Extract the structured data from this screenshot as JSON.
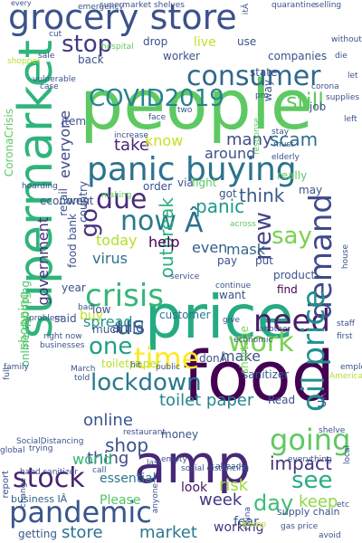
{
  "words": [
    {
      "text": "grocery store",
      "color": "#3b528b"
    },
    {
      "text": "people",
      "color": "#5ec962"
    },
    {
      "text": "food",
      "color": "#440154"
    },
    {
      "text": "supermarket",
      "color": "#2fb47c"
    },
    {
      "text": "price",
      "color": "#25ab82"
    },
    {
      "text": "amp",
      "color": "#482878"
    },
    {
      "text": "consumer",
      "color": "#31688e"
    },
    {
      "text": "COVID2019",
      "color": "#26828e"
    },
    {
      "text": "panic buying",
      "color": "#2c728e"
    },
    {
      "text": "crisis",
      "color": "#35b779"
    },
    {
      "text": "time",
      "color": "#fde725"
    },
    {
      "text": "stock",
      "color": "#482475"
    },
    {
      "text": "pandemic",
      "color": "#39568c"
    },
    {
      "text": "need",
      "color": "#481a6c"
    },
    {
      "text": "demand",
      "color": "#3e4a89"
    },
    {
      "text": "oil price",
      "color": "#21918c"
    },
    {
      "text": "going",
      "color": "#5ec962"
    },
    {
      "text": "work",
      "color": "#7ad151"
    },
    {
      "text": "lockdown",
      "color": "#2a788e"
    },
    {
      "text": "now",
      "color": "#2a788e"
    },
    {
      "text": "due",
      "color": "#472d7b"
    },
    {
      "text": "stop",
      "color": "#443983"
    },
    {
      "text": "still",
      "color": "#5ec962"
    },
    {
      "text": "new",
      "color": "#414487"
    },
    {
      "text": "say",
      "color": "#7ad151"
    },
    {
      "text": "us",
      "color": "#33638d"
    },
    {
      "text": "one",
      "color": "#1fa187"
    },
    {
      "text": "go",
      "color": "#46337e"
    },
    {
      "text": "Â",
      "color": "#2d708e"
    },
    {
      "text": "shop",
      "color": "#3b528b"
    },
    {
      "text": "see",
      "color": "#27ad81"
    },
    {
      "text": "day",
      "color": "#3dbc74"
    },
    {
      "text": "impact",
      "color": "#46327e"
    },
    {
      "text": "keep",
      "color": "#8fd744"
    },
    {
      "text": "scam",
      "color": "#2e6e8e"
    },
    {
      "text": "outbreak",
      "color": "#29af7f"
    },
    {
      "text": "take",
      "color": "#482475"
    },
    {
      "text": "think",
      "color": "#38598c"
    },
    {
      "text": "panic",
      "color": "#1f978b"
    },
    {
      "text": "today",
      "color": "#b5de2b"
    },
    {
      "text": "help",
      "color": "#440154"
    },
    {
      "text": "even",
      "color": "#365c8d"
    },
    {
      "text": "virus",
      "color": "#2d708e"
    },
    {
      "text": "mask",
      "color": "#30698e"
    },
    {
      "text": "toilet paper",
      "color": "#25858e"
    },
    {
      "text": "online",
      "color": "#39558c"
    },
    {
      "text": "thing",
      "color": "#3e4989"
    },
    {
      "text": "world",
      "color": "#35b779"
    },
    {
      "text": "week",
      "color": "#453581"
    },
    {
      "text": "risk",
      "color": "#9fda3a"
    },
    {
      "text": "store",
      "color": "#2c728e"
    },
    {
      "text": "market",
      "color": "#2a788e"
    },
    {
      "text": "Please",
      "color": "#52c569"
    },
    {
      "text": "working",
      "color": "#46327e"
    },
    {
      "text": "everyone",
      "color": "#3f4788"
    },
    {
      "text": "know",
      "color": "#c8e020"
    },
    {
      "text": "many",
      "color": "#3e4c8a"
    },
    {
      "text": "around",
      "color": "#3a538b"
    },
    {
      "text": "government",
      "color": "#472c7a"
    },
    {
      "text": "shopping",
      "color": "#5ec962"
    },
    {
      "text": "online shopping",
      "color": "#4ac16d"
    },
    {
      "text": "make",
      "color": "#3b528b"
    },
    {
      "text": "fear",
      "color": "#365c8d"
    },
    {
      "text": "look",
      "color": "#481467"
    },
    {
      "text": "essential",
      "color": "#2a788e"
    },
    {
      "text": "getting",
      "color": "#37598c"
    },
    {
      "text": "business IÂ",
      "color": "#34618d"
    },
    {
      "text": "report",
      "color": "#3b518b"
    },
    {
      "text": "food bank",
      "color": "#3b528b"
    },
    {
      "text": "spread",
      "color": "#20928c"
    },
    {
      "text": "buy",
      "color": "#c5e021"
    },
    {
      "text": "amid",
      "color": "#3b528b"
    },
    {
      "text": "customer",
      "color": "#2a788e"
    },
    {
      "text": "donÂ",
      "color": "#3b528b"
    },
    {
      "text": "Read",
      "color": "#3b528b"
    },
    {
      "text": "money",
      "color": "#3b528b"
    },
    {
      "text": "toiletpaper",
      "color": "#b5de2b"
    },
    {
      "text": "sanitizer",
      "color": "#38598c"
    },
    {
      "text": "shortage",
      "color": "#7ad151"
    },
    {
      "text": "want",
      "color": "#3b528b"
    },
    {
      "text": "find",
      "color": "#440154"
    },
    {
      "text": "product",
      "color": "#3b528b"
    },
    {
      "text": "pay",
      "color": "#3b528b"
    },
    {
      "text": "put",
      "color": "#3b528b"
    },
    {
      "text": "really",
      "color": "#5ec962"
    },
    {
      "text": "way",
      "color": "#3b528b"
    },
    {
      "text": "job",
      "color": "#3b528b"
    },
    {
      "text": "got",
      "color": "#3b528b"
    },
    {
      "text": "may",
      "color": "#3b528b"
    },
    {
      "text": "state",
      "color": "#3b528b"
    },
    {
      "text": "companies",
      "color": "#3b528b"
    },
    {
      "text": "live",
      "color": "#c2df23"
    },
    {
      "text": "use",
      "color": "#3b528b"
    },
    {
      "text": "worker",
      "color": "#3b528b"
    },
    {
      "text": "back",
      "color": "#3b528b"
    },
    {
      "text": "drop",
      "color": "#3b528b"
    },
    {
      "text": "item",
      "color": "#3b528b"
    },
    {
      "text": "went",
      "color": "#3b528b"
    },
    {
      "text": "economy",
      "color": "#3b528b"
    },
    {
      "text": "retail",
      "color": "#3b528b"
    },
    {
      "text": "country",
      "color": "#3b528b"
    },
    {
      "text": "year",
      "color": "#3b528b"
    },
    {
      "text": "order",
      "color": "#3b528b"
    },
    {
      "text": "via",
      "color": "#3b528b"
    },
    {
      "text": "fight",
      "color": "#5ec962"
    },
    {
      "text": "low",
      "color": "#3b528b"
    },
    {
      "text": "much",
      "color": "#3b528b"
    },
    {
      "text": "said",
      "color": "#3b528b"
    },
    {
      "text": "UK",
      "color": "#3b528b"
    },
    {
      "text": "supply chain",
      "color": "#3b528b"
    },
    {
      "text": "social distancing",
      "color": "#3b528b"
    },
    {
      "text": "hand sanitizer",
      "color": "#3b528b"
    },
    {
      "text": "gas price",
      "color": "#3b528b"
    },
    {
      "text": "CoronaCrisis",
      "color": "#5ec962"
    },
    {
      "text": "every",
      "color": "#3b528b"
    },
    {
      "text": "supermarket shelves",
      "color": "#3b528b"
    },
    {
      "text": "quarantine",
      "color": "#3b528b"
    },
    {
      "text": "selling",
      "color": "#3b528b"
    },
    {
      "text": "itÂ",
      "color": "#3b528b"
    },
    {
      "text": "emergency",
      "color": "#3b528b"
    },
    {
      "text": "without",
      "color": "#3b528b"
    },
    {
      "text": "hospital",
      "color": "#5ec962"
    },
    {
      "text": "vulnerable",
      "color": "#3b528b"
    },
    {
      "text": "case",
      "color": "#3b528b"
    },
    {
      "text": "die",
      "color": "#3b528b"
    },
    {
      "text": "corona",
      "color": "#3b528b"
    },
    {
      "text": "supplies",
      "color": "#3b528b"
    },
    {
      "text": "left",
      "color": "#3b528b"
    },
    {
      "text": "increase",
      "color": "#3b528b"
    },
    {
      "text": "stay",
      "color": "#3b528b"
    },
    {
      "text": "must",
      "color": "#3b528b"
    },
    {
      "text": "elderly",
      "color": "#3b528b"
    },
    {
      "text": "hoarding",
      "color": "#3b528b"
    },
    {
      "text": "making",
      "color": "#5ec962"
    },
    {
      "text": "across",
      "color": "#5ec962"
    },
    {
      "text": "service",
      "color": "#3b528b"
    },
    {
      "text": "continue",
      "color": "#3b528b"
    },
    {
      "text": "house",
      "color": "#3b528b"
    },
    {
      "text": "give",
      "color": "#3b528b"
    },
    {
      "text": "staff",
      "color": "#3b528b"
    },
    {
      "text": "first",
      "color": "#3b528b"
    },
    {
      "text": "another",
      "color": "#3b528b"
    },
    {
      "text": "hit",
      "color": "#3b528b"
    },
    {
      "text": "public",
      "color": "#3b528b"
    },
    {
      "text": "employee",
      "color": "#3b528b"
    },
    {
      "text": "American",
      "color": "#b5de2b"
    },
    {
      "text": "restaurant",
      "color": "#3b528b"
    },
    {
      "text": "SocialDistancing",
      "color": "#3b528b"
    },
    {
      "text": "trying",
      "color": "#3b528b"
    },
    {
      "text": "global",
      "color": "#3b528b"
    },
    {
      "text": "call",
      "color": "#3b528b"
    },
    {
      "text": "last",
      "color": "#3b528b"
    },
    {
      "text": "empty",
      "color": "#3b528b"
    },
    {
      "text": "already",
      "color": "#3b528b"
    },
    {
      "text": "everything",
      "color": "#3b528b"
    },
    {
      "text": "China",
      "color": "#3b528b"
    },
    {
      "text": "Trump",
      "color": "#b5de2b"
    },
    {
      "text": "avoid",
      "color": "#3b528b"
    },
    {
      "text": "local",
      "color": "#3b528b"
    },
    {
      "text": "businesses",
      "color": "#3b528b"
    },
    {
      "text": "problem",
      "color": "#3b528b"
    },
    {
      "text": "right now",
      "color": "#3b528b"
    },
    {
      "text": "family",
      "color": "#3b528b"
    },
    {
      "text": "March",
      "color": "#3b528b"
    },
    {
      "text": "told",
      "color": "#3b528b"
    },
    {
      "text": "economic",
      "color": "#3b528b"
    },
    {
      "text": "bad",
      "color": "#3b528b"
    },
    {
      "text": "full",
      "color": "#3b528b"
    },
    {
      "text": "face",
      "color": "#3b528b"
    },
    {
      "text": "two",
      "color": "#3b528b"
    },
    {
      "text": "sale",
      "color": "#3b528b"
    },
    {
      "text": "cut",
      "color": "#3b528b"
    },
    {
      "text": "pm",
      "color": "#3b528b"
    },
    {
      "text": "let",
      "color": "#3b528b"
    },
    {
      "text": "change",
      "color": "#3b528b"
    },
    {
      "text": "anyone",
      "color": "#3b528b"
    },
    {
      "text": "etc",
      "color": "#3b528b"
    },
    {
      "text": "shelve",
      "color": "#3b528b"
    },
    {
      "text": "response",
      "color": "#5ec962"
    },
    {
      "text": "shopper",
      "color": "#b5de2b"
    }
  ]
}
